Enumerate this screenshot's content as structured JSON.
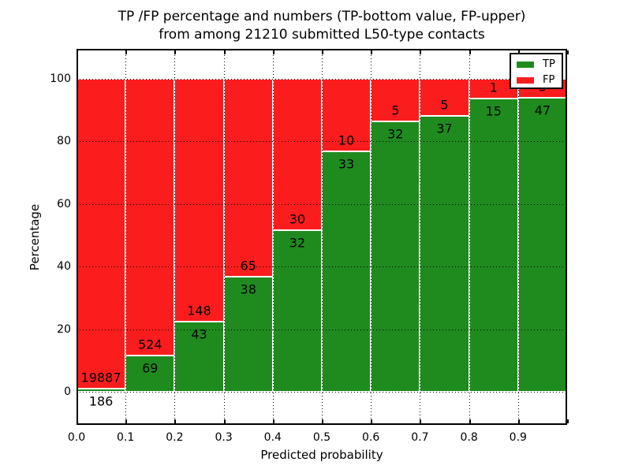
{
  "figure": {
    "title_line1": "TP /FP percentage and numbers (TP-bottom value, FP-upper)",
    "title_line2": "from among 21210 submitted L50-type contacts",
    "xlabel": "Predicted probability",
    "ylabel": "Percentage"
  },
  "legend": {
    "items": [
      {
        "label": "TP",
        "color": "#1f8b1f"
      },
      {
        "label": "FP",
        "color": "#fb1d1d"
      }
    ]
  },
  "chart_data": {
    "type": "bar",
    "stacked": true,
    "title": "TP /FP percentage and numbers (TP-bottom value, FP-upper) from among 21210 submitted L50-type contacts",
    "xlabel": "Predicted probability",
    "ylabel": "Percentage",
    "total_submitted": 21210,
    "bin_edges": [
      0.0,
      0.1,
      0.2,
      0.3,
      0.4,
      0.5,
      0.6,
      0.7,
      0.8,
      0.9,
      1.0
    ],
    "xtick_labels": [
      "0.0",
      "0.1",
      "0.2",
      "0.3",
      "0.4",
      "0.5",
      "0.6",
      "0.7",
      "0.8",
      "0.9"
    ],
    "ytick_labels": [
      "0",
      "20",
      "40",
      "60",
      "80",
      "100"
    ],
    "ytick_values": [
      0,
      20,
      40,
      60,
      80,
      100
    ],
    "ylim": [
      -11,
      110
    ],
    "grid": true,
    "legend_position": "upper right",
    "series": [
      {
        "name": "TP",
        "color": "#1f8b1f",
        "counts": [
          186,
          69,
          43,
          38,
          32,
          33,
          32,
          37,
          15,
          47
        ],
        "pct": [
          0.93,
          11.64,
          22.51,
          36.89,
          51.61,
          76.74,
          86.49,
          88.1,
          93.75,
          94.0
        ]
      },
      {
        "name": "FP",
        "color": "#fb1d1d",
        "counts": [
          19887,
          524,
          148,
          65,
          30,
          10,
          5,
          5,
          1,
          3
        ],
        "pct": [
          99.07,
          88.36,
          77.49,
          63.11,
          48.39,
          23.26,
          13.51,
          11.9,
          6.25,
          6.0
        ]
      }
    ]
  }
}
